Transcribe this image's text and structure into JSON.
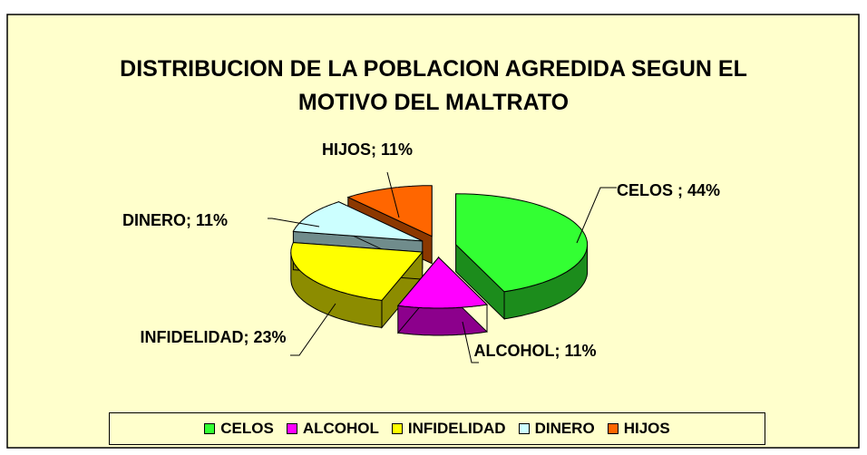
{
  "chart_data": {
    "type": "pie3d",
    "title": "DISTRIBUCION DE LA POBLACION AGREDIDA SEGUN EL MOTIVO DEL MALTRATO",
    "categories": [
      "CELOS",
      "ALCOHOL",
      "INFIDELIDAD",
      "DINERO",
      "HIJOS"
    ],
    "values": [
      44,
      11,
      23,
      11,
      11
    ],
    "value_labels": [
      "CELOS ; 44%",
      "ALCOHOL; 11%",
      "INFIDELIDAD; 23%",
      "DINERO; 11%",
      "HIJOS; 11%"
    ],
    "colors": [
      "#33ff33",
      "#ff00ff",
      "#ffff00",
      "#ccffff",
      "#ff6600"
    ],
    "legend": "bottom"
  }
}
